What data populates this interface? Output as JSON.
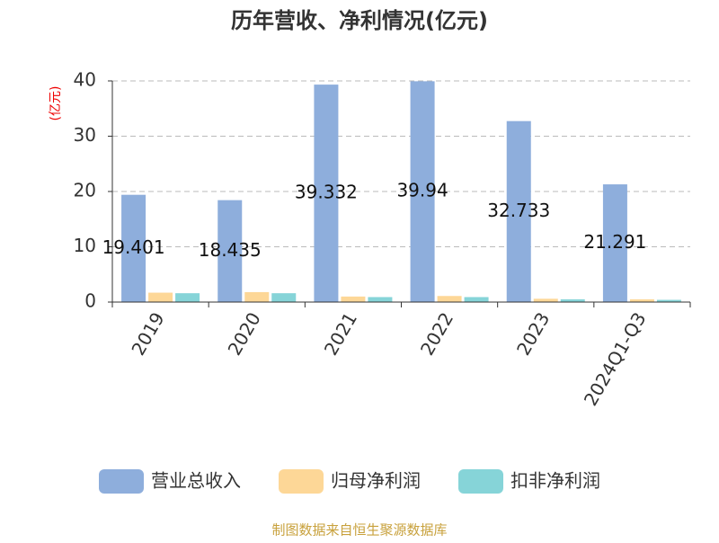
{
  "chart_data": {
    "type": "bar",
    "title": "历年营收、净利情况(亿元)",
    "y_label": "(亿元)",
    "categories": [
      "2019",
      "2020",
      "2021",
      "2022",
      "2023",
      "2024Q1-Q3"
    ],
    "series": [
      {
        "name": "营业总收入",
        "color": "#8eaedc",
        "values": [
          19.401,
          18.435,
          39.332,
          39.94,
          32.733,
          21.291
        ]
      },
      {
        "name": "归母净利润",
        "color": "#fdd797",
        "values": [
          1.7,
          1.8,
          1.0,
          1.1,
          0.6,
          0.5
        ]
      },
      {
        "name": "扣非净利润",
        "color": "#86d4d8",
        "values": [
          1.6,
          1.6,
          0.9,
          0.9,
          0.5,
          0.4
        ]
      }
    ],
    "ylim": [
      0,
      40
    ],
    "yticks": [
      0,
      10,
      20,
      30,
      40
    ],
    "grid": true,
    "legend": "bottom",
    "source": "制图数据来自恒生聚源数据库"
  }
}
